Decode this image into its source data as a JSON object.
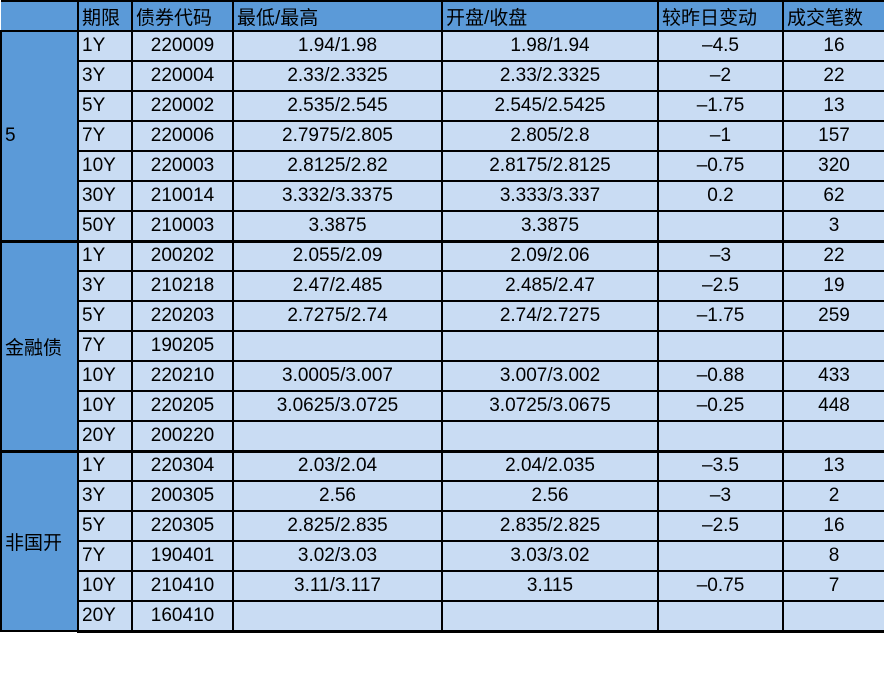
{
  "colors": {
    "header_bg": "#5b9ad8",
    "group_bg": "#5b9ad8",
    "cell_bg": "#c9dcf3",
    "border": "#000000",
    "text": "#000000"
  },
  "table": {
    "columns": [
      "",
      "期限",
      "债券代码",
      "最低/最高",
      "开盘/收盘",
      "较昨日变动",
      "成交笔数"
    ],
    "groups": [
      {
        "label": "5",
        "rows": [
          {
            "term": "1Y",
            "code": "220009",
            "low_high": "1.94/1.98",
            "open_close": "1.98/1.94",
            "change": "–4.5",
            "trades": "16"
          },
          {
            "term": "3Y",
            "code": "220004",
            "low_high": "2.33/2.3325",
            "open_close": "2.33/2.3325",
            "change": "–2",
            "trades": "22"
          },
          {
            "term": "5Y",
            "code": "220002",
            "low_high": "2.535/2.545",
            "open_close": "2.545/2.5425",
            "change": "–1.75",
            "trades": "13"
          },
          {
            "term": "7Y",
            "code": "220006",
            "low_high": "2.7975/2.805",
            "open_close": "2.805/2.8",
            "change": "–1",
            "trades": "157"
          },
          {
            "term": "10Y",
            "code": "220003",
            "low_high": "2.8125/2.82",
            "open_close": "2.8175/2.8125",
            "change": "–0.75",
            "trades": "320"
          },
          {
            "term": "30Y",
            "code": "210014",
            "low_high": "3.332/3.3375",
            "open_close": "3.333/3.337",
            "change": "0.2",
            "trades": "62"
          },
          {
            "term": "50Y",
            "code": "210003",
            "low_high": "3.3875",
            "open_close": "3.3875",
            "change": "",
            "trades": "3"
          }
        ]
      },
      {
        "label": "金融债",
        "rows": [
          {
            "term": "1Y",
            "code": "200202",
            "low_high": "2.055/2.09",
            "open_close": "2.09/2.06",
            "change": "–3",
            "trades": "22"
          },
          {
            "term": "3Y",
            "code": "210218",
            "low_high": "2.47/2.485",
            "open_close": "2.485/2.47",
            "change": "–2.5",
            "trades": "19"
          },
          {
            "term": "5Y",
            "code": "220203",
            "low_high": "2.7275/2.74",
            "open_close": "2.74/2.7275",
            "change": "–1.75",
            "trades": "259"
          },
          {
            "term": "7Y",
            "code": "190205",
            "low_high": "",
            "open_close": "",
            "change": "",
            "trades": ""
          },
          {
            "term": "10Y",
            "code": "220210",
            "low_high": "3.0005/3.007",
            "open_close": "3.007/3.002",
            "change": "–0.88",
            "trades": "433"
          },
          {
            "term": "10Y",
            "code": "220205",
            "low_high": "3.0625/3.0725",
            "open_close": "3.0725/3.0675",
            "change": "–0.25",
            "trades": "448"
          },
          {
            "term": "20Y",
            "code": "200220",
            "low_high": "",
            "open_close": "",
            "change": "",
            "trades": ""
          }
        ]
      },
      {
        "label": "非国开",
        "rows": [
          {
            "term": "1Y",
            "code": "220304",
            "low_high": "2.03/2.04",
            "open_close": "2.04/2.035",
            "change": "–3.5",
            "trades": "13"
          },
          {
            "term": "3Y",
            "code": "200305",
            "low_high": "2.56",
            "open_close": "2.56",
            "change": "–3",
            "trades": "2"
          },
          {
            "term": "5Y",
            "code": "220305",
            "low_high": "2.825/2.835",
            "open_close": "2.835/2.825",
            "change": "–2.5",
            "trades": "16"
          },
          {
            "term": "7Y",
            "code": "190401",
            "low_high": "3.02/3.03",
            "open_close": "3.03/3.02",
            "change": "",
            "trades": "8"
          },
          {
            "term": "10Y",
            "code": "210410",
            "low_high": "3.11/3.117",
            "open_close": "3.115",
            "change": "–0.75",
            "trades": "7"
          },
          {
            "term": "20Y",
            "code": "160410",
            "low_high": "",
            "open_close": "",
            "change": "",
            "trades": ""
          }
        ]
      }
    ]
  }
}
